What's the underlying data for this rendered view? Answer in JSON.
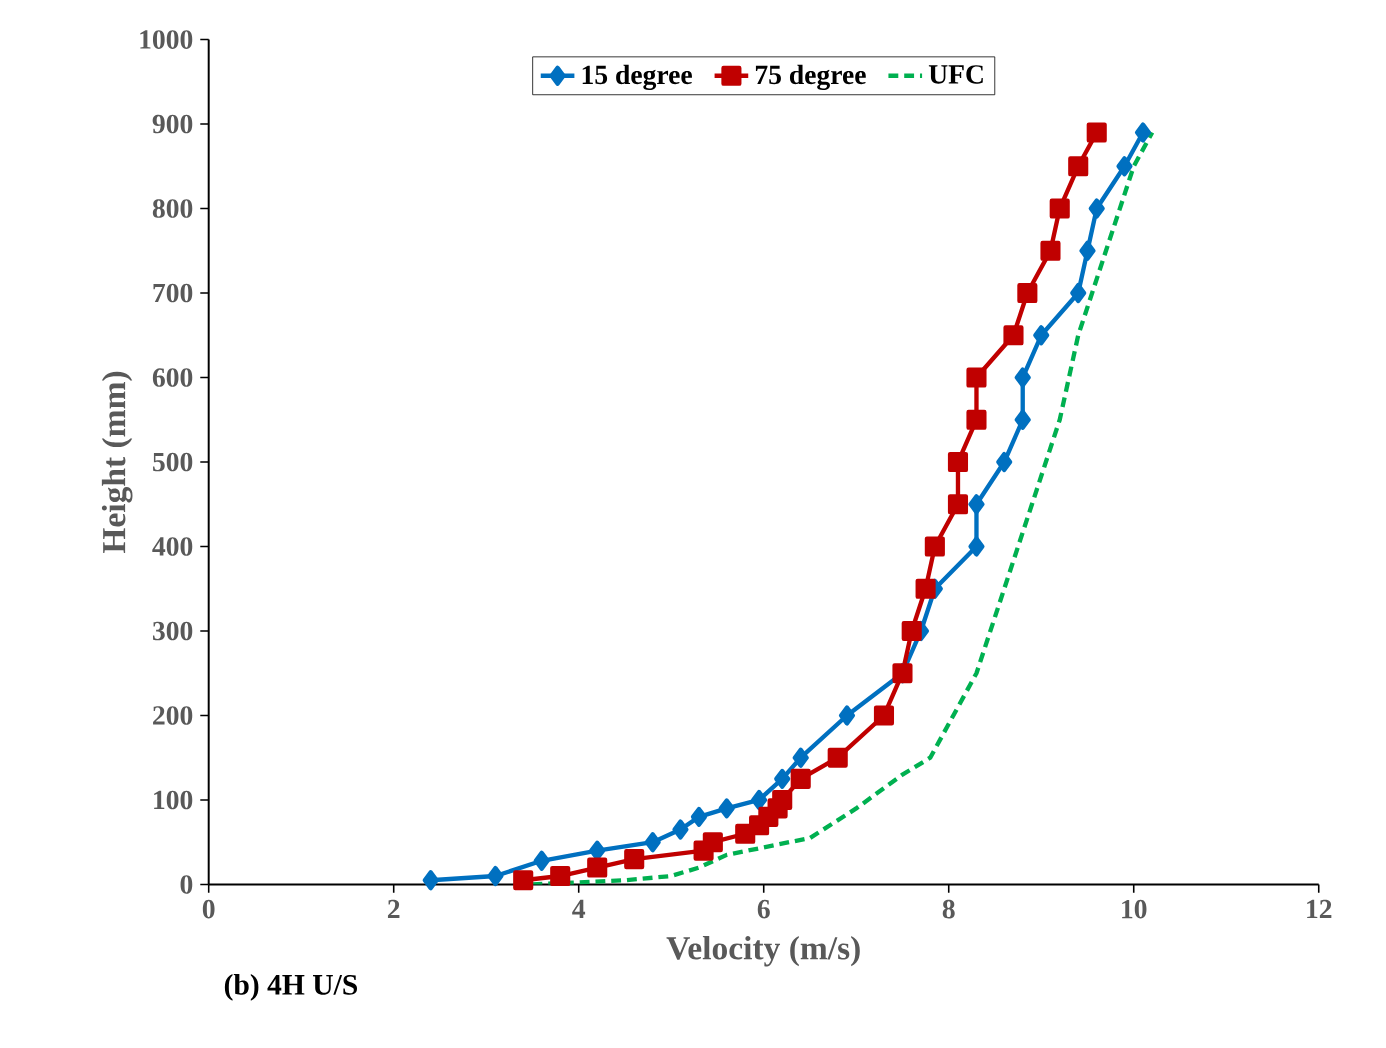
{
  "chart_data": {
    "type": "line",
    "xlabel": "Velocity (m/s)",
    "ylabel": "Height (mm)",
    "xlim": [
      0,
      12
    ],
    "xticks": [
      0,
      2,
      4,
      6,
      8,
      10,
      12
    ],
    "ylim": [
      0,
      1000
    ],
    "yticks": [
      0,
      100,
      200,
      300,
      400,
      500,
      600,
      700,
      800,
      900,
      1000
    ],
    "grid": false,
    "legend": "top",
    "annotations": [
      "(b) 4H U/S"
    ],
    "series": [
      {
        "name": "15 degree",
        "color": "#0070c0",
        "marker": "diamond",
        "line_style": "solid",
        "x": [
          2.4,
          3.1,
          3.6,
          4.2,
          4.8,
          5.1,
          5.3,
          5.6,
          5.95,
          6.2,
          6.4,
          6.9,
          7.5,
          7.7,
          7.85,
          8.3,
          8.3,
          8.6,
          8.8,
          8.8,
          9.0,
          9.4,
          9.5,
          9.6,
          9.9,
          10.1
        ],
        "values": [
          5,
          10,
          28,
          40,
          50,
          65,
          80,
          90,
          100,
          125,
          150,
          200,
          250,
          300,
          350,
          400,
          450,
          500,
          550,
          600,
          650,
          700,
          750,
          800,
          850,
          890
        ]
      },
      {
        "name": "75 degree",
        "color": "#c00000",
        "marker": "square",
        "line_style": "solid",
        "x": [
          3.4,
          3.8,
          4.2,
          4.6,
          5.35,
          5.45,
          5.8,
          5.95,
          6.05,
          6.15,
          6.2,
          6.4,
          6.8,
          7.3,
          7.5,
          7.6,
          7.75,
          7.85,
          8.1,
          8.1,
          8.3,
          8.3,
          8.7,
          8.85,
          9.1,
          9.2,
          9.4,
          9.6
        ],
        "values": [
          5,
          10,
          20,
          30,
          40,
          50,
          60,
          70,
          80,
          90,
          100,
          125,
          150,
          200,
          250,
          300,
          350,
          400,
          450,
          500,
          550,
          600,
          650,
          700,
          750,
          800,
          850,
          890
        ]
      },
      {
        "name": "UFC",
        "color": "#00b050",
        "marker": "none",
        "line_style": "dashed",
        "x": [
          3.5,
          4.5,
          5.0,
          5.3,
          5.6,
          6.5,
          7.0,
          7.5,
          7.8,
          8.3,
          8.6,
          8.9,
          9.2,
          9.4,
          9.7,
          10.0,
          10.2
        ],
        "values": [
          0,
          5,
          10,
          20,
          35,
          55,
          90,
          130,
          150,
          250,
          350,
          450,
          550,
          650,
          750,
          850,
          890
        ]
      }
    ]
  }
}
